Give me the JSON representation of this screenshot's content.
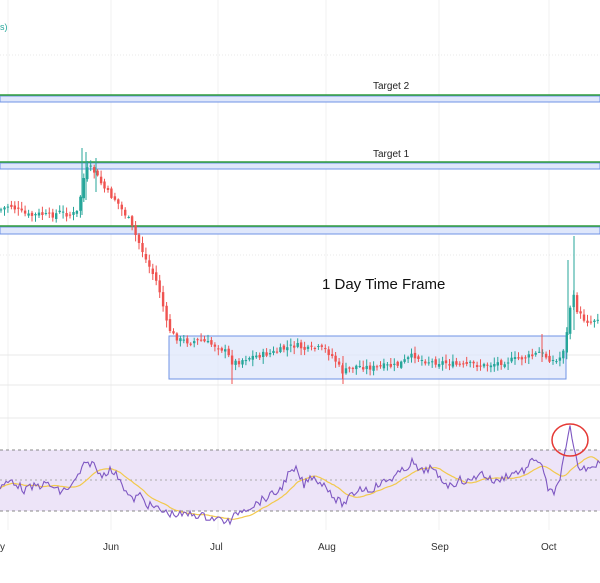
{
  "header": {
    "partial_label": "s)"
  },
  "annotations": {
    "target_2": "Target 2",
    "target_1": "Target 1",
    "time_frame": "1 Day Time Frame"
  },
  "colors": {
    "candle_up": "#26a69a",
    "candle_down": "#ef5350",
    "target_line": "#2e9e3a",
    "zone_fill": "#dfe7fb",
    "zone_border": "#6f93e6",
    "rsi_band": "#ede4f8",
    "rsi_line": "#7e57c2",
    "rsi_ma": "#f2c94c",
    "highlight_circle": "#e53935"
  },
  "x_axis": {
    "months": [
      "y",
      "Jun",
      "Jul",
      "Aug",
      "Sep",
      "Oct"
    ]
  },
  "chart_data": {
    "type": "candlestick",
    "timeframe": "1 Day",
    "series": [
      {
        "name": "RSI"
      },
      {
        "name": "RSI MA"
      }
    ],
    "targets": [
      "Target 1",
      "Target 2"
    ],
    "consolidation_zone": "Jun–Oct",
    "rsi_highlight": "Oct peak circled"
  }
}
